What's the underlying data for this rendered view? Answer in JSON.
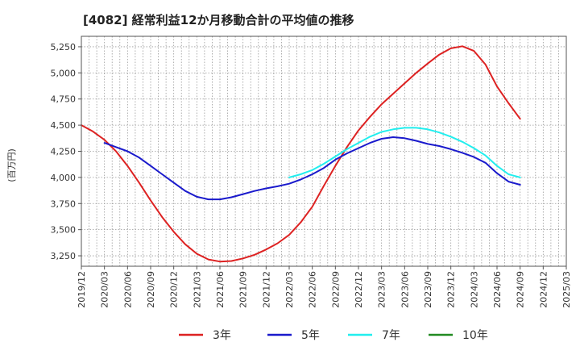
{
  "chart_data": {
    "type": "line",
    "title": "[4082]  経常利益12か月移動合計の平均値の推移",
    "ylabel": "(百万円)",
    "xlabel": "",
    "ylim": [
      3150,
      5350
    ],
    "yticks": [
      3250,
      3500,
      3750,
      4000,
      4250,
      4500,
      4750,
      5000,
      5250
    ],
    "ytick_labels": [
      "3,250",
      "3,500",
      "3,750",
      "4,000",
      "4,250",
      "4,500",
      "4,750",
      "5,000",
      "5,250"
    ],
    "xticks": [
      "2019/12",
      "2020/03",
      "2020/06",
      "2020/09",
      "2020/12",
      "2021/03",
      "2021/06",
      "2021/09",
      "2021/12",
      "2022/03",
      "2022/06",
      "2022/09",
      "2022/12",
      "2023/03",
      "2023/06",
      "2023/09",
      "2023/12",
      "2024/03",
      "2024/06",
      "2024/09",
      "2024/12",
      "2025/03"
    ],
    "grid": true,
    "legend_position": "bottom",
    "series": [
      {
        "name": "3年",
        "color": "#dd2222",
        "start": "2019/12",
        "values": [
          4500,
          4440,
          4360,
          4250,
          4110,
          3950,
          3780,
          3620,
          3480,
          3360,
          3270,
          3215,
          3195,
          3200,
          3225,
          3260,
          3310,
          3370,
          3450,
          3570,
          3720,
          3920,
          4110,
          4290,
          4450,
          4580,
          4700,
          4800,
          4900,
          5000,
          5090,
          5175,
          5235,
          5255,
          5210,
          5080,
          4870,
          4710,
          4560
        ]
      },
      {
        "name": "5年",
        "color": "#1a1acc",
        "start": "2020/03",
        "values": [
          4330,
          4290,
          4250,
          4190,
          4110,
          4030,
          3950,
          3870,
          3815,
          3790,
          3790,
          3810,
          3840,
          3870,
          3895,
          3915,
          3940,
          3980,
          4030,
          4090,
          4170,
          4230,
          4280,
          4330,
          4370,
          4385,
          4375,
          4350,
          4320,
          4300,
          4270,
          4235,
          4195,
          4140,
          4040,
          3960,
          3930
        ]
      },
      {
        "name": "7年",
        "color": "#22eeee",
        "start": "2022/03",
        "values": [
          4000,
          4030,
          4070,
          4130,
          4200,
          4270,
          4330,
          4390,
          4435,
          4460,
          4475,
          4475,
          4460,
          4430,
          4390,
          4340,
          4280,
          4210,
          4110,
          4030,
          4000
        ]
      },
      {
        "name": "10年",
        "color": "#228b22",
        "start": "",
        "values": []
      }
    ]
  }
}
